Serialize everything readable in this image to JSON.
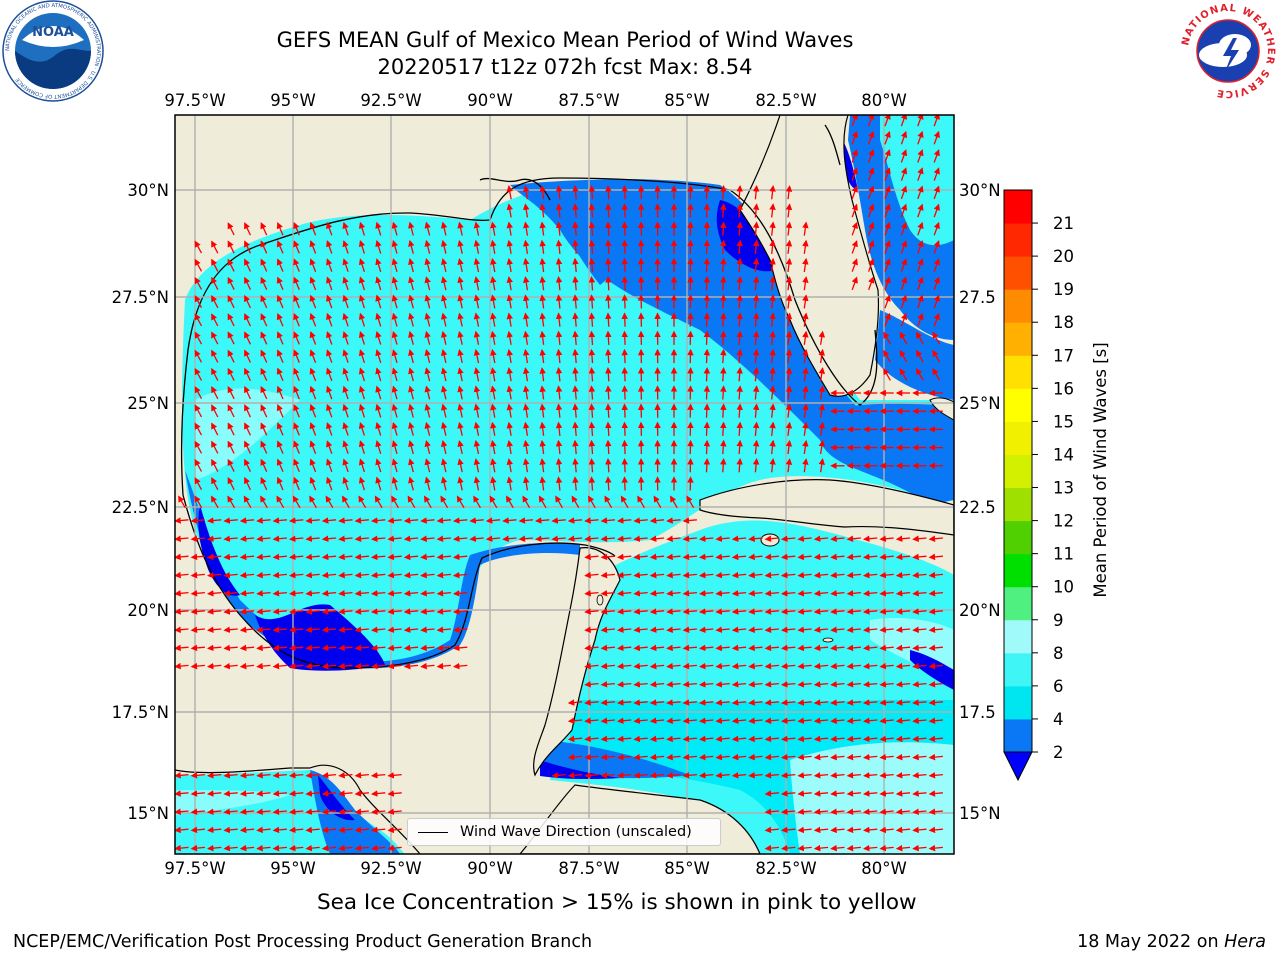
{
  "title": {
    "line1": "GEFS MEAN Gulf of Mexico Mean Period of Wind Waves",
    "line2": "20220517 t12z 072h fcst   Max: 8.54"
  },
  "map": {
    "lon_ticks": [
      "97.5°W",
      "95°W",
      "92.5°W",
      "90°W",
      "87.5°W",
      "85°W",
      "82.5°W",
      "80°W"
    ],
    "lat_ticks_left": [
      "30°N",
      "27.5°N",
      "25°N",
      "22.5°N",
      "20°N",
      "17.5°N",
      "15°N"
    ],
    "lat_ticks_right": [
      "30°N",
      "27.5",
      "25°N",
      "22.5",
      "20°N",
      "17.5",
      "15°N"
    ],
    "lon_range": [
      -98,
      -78.2
    ],
    "lat_range": [
      14,
      31.7
    ],
    "land_color": "#efecd9",
    "grid": true
  },
  "legend": {
    "label": "Wind Wave Direction (unscaled)"
  },
  "colorbar": {
    "label": "Mean Period of Wind Waves [s]",
    "tick_labels": [
      "2",
      "4",
      "6",
      "8",
      "9",
      "10",
      "11",
      "12",
      "13",
      "14",
      "15",
      "16",
      "17",
      "18",
      "19",
      "20",
      "21"
    ],
    "colors": [
      "#0a78f5",
      "#00e6f0",
      "#40f5f5",
      "#a0fafa",
      "#50f080",
      "#00e000",
      "#50d000",
      "#a0e000",
      "#d2f000",
      "#f0f000",
      "#ffff00",
      "#ffe000",
      "#ffb000",
      "#ff8c00",
      "#ff5000",
      "#ff2800",
      "#ff0000"
    ],
    "extend_min_color": "#0000ff"
  },
  "colors": {
    "period_2_4": "#0a78f5",
    "period_4_6": "#00ebf8",
    "period_6_8": "#3cf8f8",
    "period_8_9": "#9cfcfc",
    "below_2": "#0000ee",
    "arrows": "#ff0000"
  },
  "subtitle": "Sea Ice Concentration > 15% is shown in pink to yellow",
  "credit": {
    "left": "NCEP/EMC/Verification Post Processing Product Generation Branch",
    "right_date": "18 May 2022 on",
    "right_host": "Hera"
  },
  "logos": {
    "noaa": "NOAA",
    "noaa_ring": "NATIONAL OCEANIC AND ATMOSPHERIC ADMINISTRATION · U.S. DEPARTMENT OF COMMERCE",
    "nws_ring": "NATIONAL WEATHER SERVICE"
  }
}
